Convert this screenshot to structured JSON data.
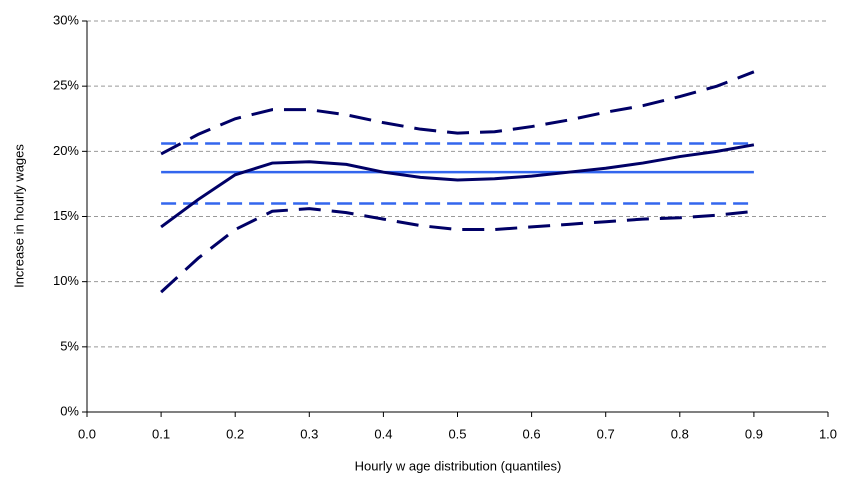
{
  "chart_data": {
    "type": "line",
    "x_label": "Hourly w age distribution (quantiles)",
    "y_label": "Increase in hourly wages",
    "xlim": [
      0,
      1
    ],
    "xticks": [
      {
        "value": 0,
        "label": "0.0"
      },
      0.1,
      0.2,
      0.3,
      0.4,
      0.5,
      0.6,
      0.7,
      0.8,
      0.9,
      {
        "value": 1,
        "label": "1.0"
      }
    ],
    "ylim": [
      0,
      30
    ],
    "yticks": [
      {
        "value": 0,
        "label": "0%"
      },
      {
        "value": 5,
        "label": "5%"
      },
      {
        "value": 10,
        "label": "10%"
      },
      {
        "value": 15,
        "label": "15%"
      },
      {
        "value": 20,
        "label": "20%"
      },
      {
        "value": 25,
        "label": "25%"
      },
      {
        "value": 30,
        "label": "30%"
      }
    ],
    "grid": true,
    "series": [
      {
        "color": "#3366ee",
        "style": "solid",
        "x": [
          0.1,
          0.9
        ],
        "values": [
          18.4,
          18.4
        ]
      },
      {
        "color": "#3366ee",
        "style": "dashed",
        "x": [
          0.1,
          0.9
        ],
        "values": [
          20.6,
          20.6
        ]
      },
      {
        "color": "#3366ee",
        "style": "dashed",
        "x": [
          0.1,
          0.9
        ],
        "values": [
          16.0,
          16.0
        ]
      },
      {
        "color": "#000066",
        "style": "solid",
        "x": [
          0.1,
          0.15,
          0.2,
          0.25,
          0.3,
          0.35,
          0.4,
          0.45,
          0.5,
          0.55,
          0.6,
          0.65,
          0.7,
          0.75,
          0.8,
          0.85,
          0.9
        ],
        "values": [
          14.2,
          16.3,
          18.2,
          19.1,
          19.2,
          19.0,
          18.4,
          18.0,
          17.8,
          17.9,
          18.1,
          18.4,
          18.7,
          19.1,
          19.6,
          20.0,
          20.5
        ]
      },
      {
        "color": "#000066",
        "style": "dashed",
        "x": [
          0.1,
          0.15,
          0.2,
          0.25,
          0.3,
          0.35,
          0.4,
          0.45,
          0.5,
          0.55,
          0.6,
          0.65,
          0.7,
          0.75,
          0.8,
          0.85,
          0.9
        ],
        "values": [
          19.8,
          21.3,
          22.5,
          23.2,
          23.2,
          22.8,
          22.2,
          21.7,
          21.4,
          21.5,
          21.9,
          22.4,
          23.0,
          23.5,
          24.2,
          25.0,
          26.1
        ]
      },
      {
        "color": "#000066",
        "style": "dashed",
        "x": [
          0.1,
          0.15,
          0.2,
          0.25,
          0.3,
          0.35,
          0.4,
          0.45,
          0.5,
          0.55,
          0.6,
          0.65,
          0.7,
          0.75,
          0.8,
          0.85,
          0.9
        ],
        "values": [
          9.2,
          11.8,
          14.0,
          15.4,
          15.6,
          15.3,
          14.8,
          14.3,
          14.0,
          14.0,
          14.2,
          14.4,
          14.6,
          14.8,
          14.9,
          15.1,
          15.4
        ]
      }
    ]
  }
}
